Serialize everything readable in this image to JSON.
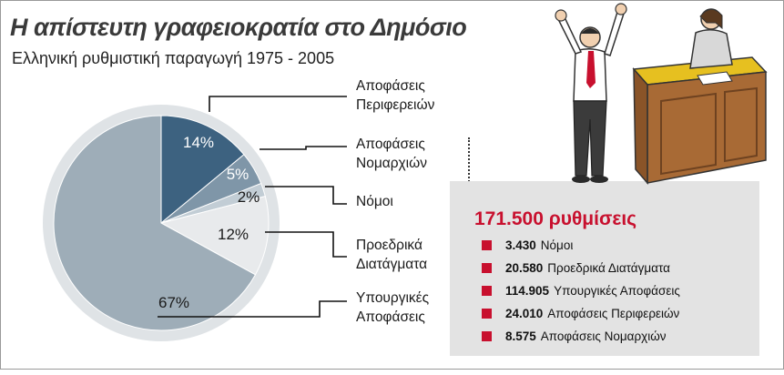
{
  "header": {
    "title": "Η απίστευτη γραφειοκρατία στο Δημόσιο",
    "subtitle": "Ελληνική ρυθμιστική παραγωγή 1975 - 2005"
  },
  "chart_data": {
    "type": "pie",
    "slices": [
      {
        "label": "Αποφάσεις Περιφερειών",
        "label_lines": [
          "Αποφάσεις",
          "Περιφερειών"
        ],
        "value": 14,
        "value_label": "14%",
        "color": "#3d6280"
      },
      {
        "label": "Αποφάσεις Νομαρχιών",
        "label_lines": [
          "Αποφάσεις",
          "Νομαρχιών"
        ],
        "value": 5,
        "value_label": "5%",
        "color": "#7f96a8"
      },
      {
        "label": "Νόμοι",
        "label_lines": [
          "Νόμοι",
          ""
        ],
        "value": 2,
        "value_label": "2%",
        "color": "#c2cdd5"
      },
      {
        "label": "Προεδρικά Διατάγματα",
        "label_lines": [
          "Προεδρικά",
          "Διατάγματα"
        ],
        "value": 12,
        "value_label": "12%",
        "color": "#e8eaec"
      },
      {
        "label": "Υπουργικές Αποφάσεις",
        "label_lines": [
          "Υπουργικές",
          "Αποφάσεις"
        ],
        "value": 67,
        "value_label": "67%",
        "color": "#9eadb8"
      }
    ]
  },
  "totals": {
    "heading": "171.500 ρυθμίσεις",
    "items": [
      {
        "count": "3.430",
        "label": "Νόμοι"
      },
      {
        "count": "20.580",
        "label": "Προεδρικά Διατάγματα"
      },
      {
        "count": "114.905",
        "label": "Υπουργικές Αποφάσεις"
      },
      {
        "count": "24.010",
        "label": "Αποφάσεις Περιφερειών"
      },
      {
        "count": "8.575",
        "label": "Αποφάσεις Νομαρχιών"
      }
    ],
    "bullet_color": "#c8102e"
  },
  "illustration": {
    "icons": [
      "cheering-man-icon",
      "clerk-woman-icon",
      "service-counter-icon"
    ]
  }
}
